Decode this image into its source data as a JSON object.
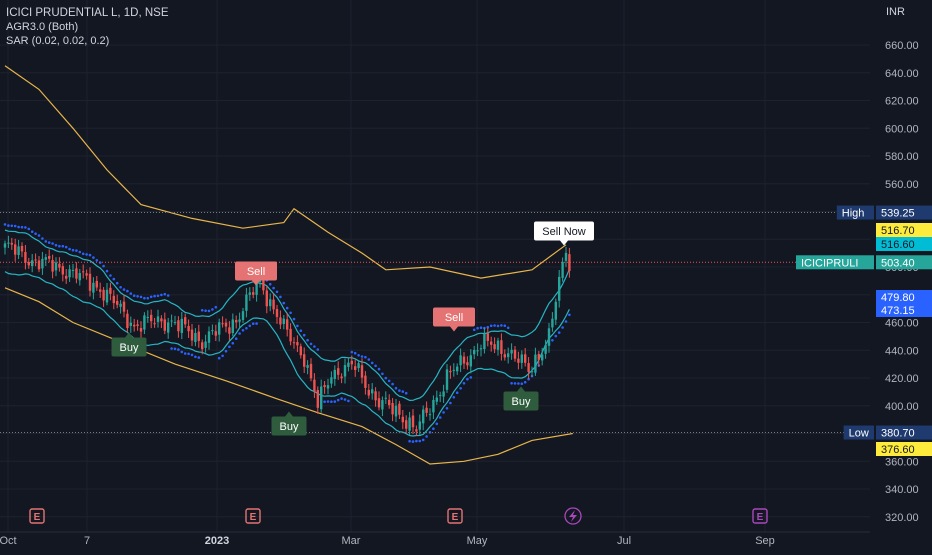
{
  "header": {
    "symbol_line": "ICICI PRUDENTIAL L, 1D, NSE",
    "indicator_1": "AGR3.0 (Both)",
    "indicator_2": "SAR (0.02, 0.02, 0.2)"
  },
  "currency": "INR",
  "colors": {
    "background": "#131722",
    "up": "#26a69a",
    "down": "#ef5350",
    "envelope": "#e8b54a",
    "band": "#27b5c4",
    "sar": "#2962ff",
    "buy_label": "#2e5c3c",
    "sell_label": "#e57373"
  },
  "chart_data": {
    "type": "candlestick",
    "y_axis": {
      "min": 310,
      "max": 670,
      "ticks": [
        "660.00",
        "640.00",
        "620.00",
        "600.00",
        "580.00",
        "560.00",
        "540.00",
        "520.00",
        "500.00",
        "480.00",
        "460.00",
        "440.00",
        "420.00",
        "400.00",
        "380.00",
        "360.00",
        "340.00",
        "320.00"
      ]
    },
    "x_axis_labels": [
      "Oct",
      "7",
      "2023",
      "Mar",
      "May",
      "Jul",
      "Sep"
    ],
    "candle_count": 167,
    "key_points": [
      {
        "x": 0,
        "y": 515
      },
      {
        "x": 8,
        "y": 505
      },
      {
        "x": 18,
        "y": 498
      },
      {
        "x": 28,
        "y": 485
      },
      {
        "x": 38,
        "y": 458
      },
      {
        "x": 48,
        "y": 462
      },
      {
        "x": 58,
        "y": 447
      },
      {
        "x": 68,
        "y": 462
      },
      {
        "x": 75,
        "y": 490
      },
      {
        "x": 82,
        "y": 455
      },
      {
        "x": 88,
        "y": 436
      },
      {
        "x": 92,
        "y": 400
      },
      {
        "x": 96,
        "y": 424
      },
      {
        "x": 103,
        "y": 428
      },
      {
        "x": 110,
        "y": 402
      },
      {
        "x": 116,
        "y": 395
      },
      {
        "x": 121,
        "y": 382
      },
      {
        "x": 130,
        "y": 420
      },
      {
        "x": 140,
        "y": 445
      },
      {
        "x": 148,
        "y": 440
      },
      {
        "x": 154,
        "y": 425
      },
      {
        "x": 160,
        "y": 450
      },
      {
        "x": 165,
        "y": 513
      },
      {
        "x": 166,
        "y": 503
      }
    ],
    "price_labels": [
      {
        "label": "High",
        "value": "539.25",
        "price": 539.25,
        "color": "#1e3a6e"
      },
      {
        "label": "",
        "value": "516.70",
        "price": 516.7,
        "color": "#ffeb3b"
      },
      {
        "label": "",
        "value": "516.60",
        "price": 516.6,
        "color": "#00bcd4"
      },
      {
        "label": "ICICIPRULI",
        "value": "503.40",
        "price": 503.4,
        "color": "#26a69a"
      },
      {
        "label": "",
        "value": "479.80",
        "price": 479.8,
        "color": "#2962ff"
      },
      {
        "label": "",
        "value": "473.15",
        "price": 473.15,
        "color": "#2962ff"
      },
      {
        "label": "Low",
        "value": "380.70",
        "price": 380.7,
        "color": "#1e3a6e"
      },
      {
        "label": "",
        "value": "376.60",
        "price": 376.6,
        "color": "#ffeb3b"
      }
    ],
    "signals": [
      {
        "text": "Buy",
        "type": "buy"
      },
      {
        "text": "Sell",
        "type": "sell"
      },
      {
        "text": "Buy",
        "type": "buy"
      },
      {
        "text": "Sell",
        "type": "sell"
      },
      {
        "text": "Buy",
        "type": "buy"
      },
      {
        "text": "Sell Now",
        "type": "sellnow"
      }
    ],
    "event_markers": [
      "E",
      "E",
      "E",
      "E"
    ]
  }
}
